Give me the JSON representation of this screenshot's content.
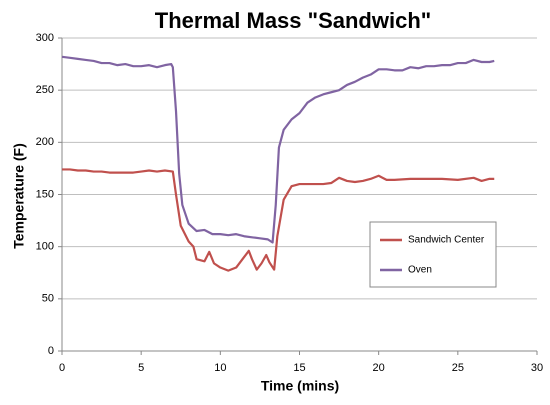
{
  "chart_data": {
    "type": "line",
    "title": "Thermal Mass \"Sandwich\"",
    "x_label": "Time (mins)",
    "y_label": "Temperature (F)",
    "xlim": [
      0,
      30
    ],
    "xticks": [
      0,
      5,
      10,
      15,
      20,
      25,
      30
    ],
    "ylim": [
      0,
      300
    ],
    "yticks": [
      0,
      50,
      100,
      150,
      200,
      250,
      300
    ],
    "grid": true,
    "legend": "right",
    "series": [
      {
        "name": "Sandwich Center",
        "color": "#c0504d",
        "x": [
          0,
          0.5,
          1,
          1.5,
          2,
          2.5,
          3,
          3.5,
          4,
          4.5,
          5,
          5.5,
          6,
          6.5,
          7,
          7.2,
          7.5,
          8,
          8.3,
          8.5,
          9,
          9.3,
          9.6,
          10,
          10.5,
          11,
          11.5,
          11.8,
          12,
          12.3,
          12.6,
          12.9,
          13.1,
          13.4,
          13.6,
          14,
          14.5,
          15,
          15.5,
          16,
          16.5,
          17,
          17.5,
          18,
          18.5,
          19,
          19.5,
          20,
          20.5,
          21,
          22,
          23,
          24,
          25,
          26,
          26.5,
          27,
          27.3
        ],
        "values": [
          174,
          174,
          173,
          173,
          172,
          172,
          171,
          171,
          171,
          171,
          172,
          173,
          172,
          173,
          172,
          150,
          120,
          105,
          100,
          88,
          86,
          95,
          84,
          80,
          77,
          80,
          90,
          96,
          88,
          78,
          84,
          92,
          85,
          78,
          110,
          145,
          158,
          160,
          160,
          160,
          160,
          161,
          166,
          163,
          162,
          163,
          165,
          168,
          164,
          164,
          165,
          165,
          165,
          164,
          166,
          163,
          165,
          165
        ]
      },
      {
        "name": "Oven",
        "color": "#8064a2",
        "x": [
          0,
          0.5,
          1,
          1.5,
          2,
          2.5,
          3,
          3.5,
          4,
          4.5,
          5,
          5.5,
          6,
          6.5,
          6.9,
          7,
          7.2,
          7.4,
          7.6,
          8,
          8.5,
          9,
          9.5,
          10,
          10.5,
          11,
          11.5,
          12,
          12.5,
          13,
          13.3,
          13.5,
          13.7,
          14,
          14.5,
          15,
          15.5,
          16,
          16.5,
          17,
          17.5,
          18,
          18.5,
          19,
          19.5,
          20,
          20.5,
          21,
          21.5,
          22,
          22.5,
          23,
          23.5,
          24,
          24.5,
          25,
          25.5,
          26,
          26.5,
          27,
          27.3
        ],
        "values": [
          282,
          281,
          280,
          279,
          278,
          276,
          276,
          274,
          275,
          273,
          273,
          274,
          272,
          274,
          275,
          272,
          230,
          170,
          140,
          122,
          115,
          116,
          112,
          112,
          111,
          112,
          110,
          109,
          108,
          107,
          104,
          140,
          195,
          212,
          222,
          228,
          238,
          243,
          246,
          248,
          250,
          255,
          258,
          262,
          265,
          270,
          270,
          269,
          269,
          272,
          271,
          273,
          273,
          274,
          274,
          276,
          276,
          279,
          277,
          277,
          278
        ]
      }
    ]
  }
}
